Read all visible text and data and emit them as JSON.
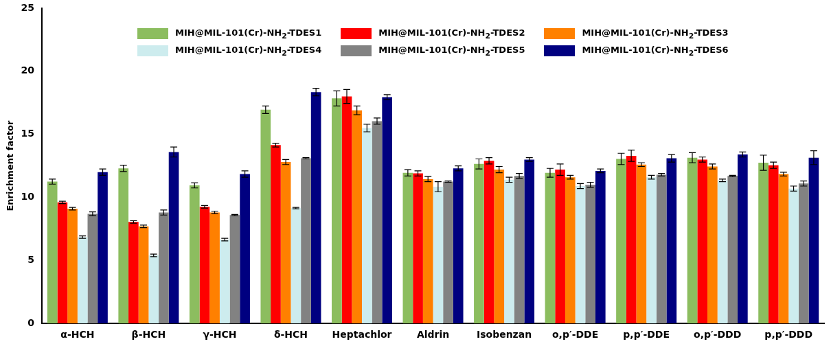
{
  "chart_data": {
    "type": "bar",
    "ylabel": "Enrichment factor",
    "categories": [
      "α-HCH",
      "β-HCH",
      "γ-HCH",
      "δ-HCH",
      "Heptachlor",
      "Aldrin",
      "Isobenzan",
      "o,p′-DDE",
      "p,p′-DDE",
      "o,p′-DDD",
      "p,p′-DDD"
    ],
    "series": [
      {
        "name": "MIH@MIL-101(Cr)-NH$_{2}$-TDES1",
        "color": "#8cbd5f",
        "values": [
          11.25,
          12.3,
          10.95,
          16.95,
          17.85,
          11.95,
          12.65,
          11.95,
          13.05,
          13.15,
          12.75
        ],
        "errors": [
          0.2,
          0.25,
          0.2,
          0.3,
          0.6,
          0.25,
          0.4,
          0.35,
          0.45,
          0.4,
          0.6
        ]
      },
      {
        "name": "MIH@MIL-101(Cr)-NH$_{2}$-TDES2",
        "color": "#ff0000",
        "values": [
          9.6,
          8.05,
          9.25,
          14.15,
          18.0,
          11.9,
          12.9,
          12.2,
          13.3,
          13.0,
          12.55
        ],
        "errors": [
          0.1,
          0.1,
          0.1,
          0.15,
          0.55,
          0.2,
          0.25,
          0.45,
          0.45,
          0.2,
          0.25
        ]
      },
      {
        "name": "MIH@MIL-101(Cr)-NH$_{2}$-TDES3",
        "color": "#ff8000",
        "values": [
          9.1,
          7.7,
          8.8,
          12.8,
          16.9,
          11.45,
          12.2,
          11.6,
          12.6,
          12.45,
          11.85
        ],
        "errors": [
          0.1,
          0.1,
          0.1,
          0.2,
          0.35,
          0.2,
          0.25,
          0.15,
          0.15,
          0.2,
          0.15
        ]
      },
      {
        "name": "MIH@MIL-101(Cr)-NH$_{2}$-TDES4",
        "color": "#cdecee",
        "values": [
          6.85,
          5.4,
          6.65,
          9.15,
          15.5,
          10.85,
          11.4,
          10.9,
          11.6,
          11.35,
          10.7
        ],
        "errors": [
          0.1,
          0.1,
          0.1,
          0.05,
          0.3,
          0.4,
          0.2,
          0.2,
          0.15,
          0.1,
          0.2
        ]
      },
      {
        "name": "MIH@MIL-101(Cr)-NH$_{2}$-TDES5",
        "color": "#828282",
        "values": [
          8.7,
          8.8,
          8.6,
          13.1,
          16.05,
          11.25,
          11.7,
          11.0,
          11.8,
          11.7,
          11.1
        ],
        "errors": [
          0.15,
          0.2,
          0.05,
          0.05,
          0.25,
          0.05,
          0.2,
          0.2,
          0.1,
          0.05,
          0.2
        ]
      },
      {
        "name": "MIH@MIL-101(Cr)-NH$_{2}$-TDES6",
        "color": "#000080",
        "values": [
          12.0,
          13.6,
          11.85,
          18.35,
          17.95,
          12.3,
          13.0,
          12.1,
          13.1,
          13.4,
          13.15
        ],
        "errors": [
          0.25,
          0.4,
          0.25,
          0.3,
          0.2,
          0.2,
          0.15,
          0.15,
          0.3,
          0.2,
          0.55
        ]
      }
    ],
    "ylim": [
      0,
      25
    ],
    "yticks": [
      0,
      5,
      10,
      15,
      20,
      25
    ],
    "grid": false,
    "legend": "top"
  }
}
